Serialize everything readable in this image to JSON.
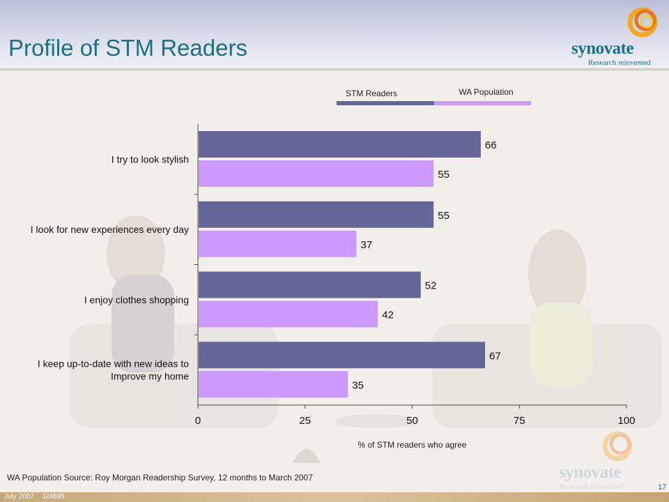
{
  "slide": {
    "title": "Profile of STM Readers",
    "source_note": "WA Population Source: Roy Morgan Readership Survey, 12 months to March 2007",
    "page_number": "17",
    "footer": "July 2007    J24685"
  },
  "logo": {
    "brand": "synovate",
    "tagline": "Research reinvented"
  },
  "colors": {
    "stm_readers": "#666699",
    "wa_population": "#cc99ff",
    "title": "#1f6f86"
  },
  "chart_data": {
    "type": "bar",
    "orientation": "horizontal",
    "categories": [
      "I try to look stylish",
      "I look for new experiences every day",
      "I enjoy clothes shopping",
      "I keep up-to-date with new ideas to Improve my home"
    ],
    "series": [
      {
        "name": "STM Readers",
        "values": [
          66,
          55,
          52,
          67
        ]
      },
      {
        "name": "WA Population",
        "values": [
          55,
          37,
          42,
          35
        ]
      }
    ],
    "xlabel": "% of STM readers who agree",
    "xlim": [
      0,
      100
    ],
    "xticks": [
      0,
      25,
      50,
      75,
      100
    ],
    "data_labels": true,
    "legend_position": "top-right",
    "grid": false
  }
}
